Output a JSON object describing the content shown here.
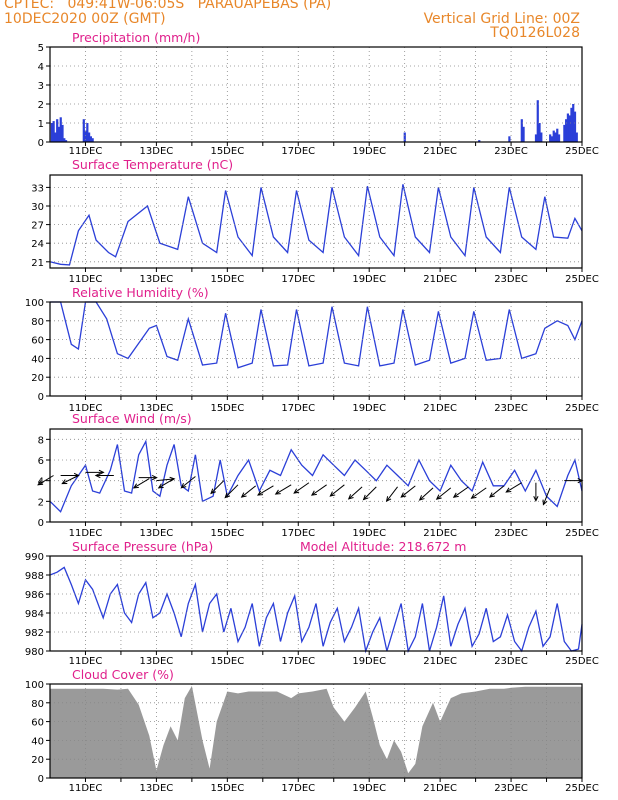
{
  "header": {
    "line1_left": "CPTEC:   049:41W-06:05S   PARAUAPEBAS (PA)",
    "line2_left": "10DEC2020 00Z (GMT)",
    "line2_right": "Vertical Grid Line: 00Z",
    "line3_right": "TQ0126L028"
  },
  "colors": {
    "header": "#e8872a",
    "title": "#e0208c",
    "line": "#2b3fd8",
    "bar": "#2b3fd8",
    "cloud": "#9a9a9a",
    "arrow": "#000000"
  },
  "x_axis": {
    "start_day": 10,
    "end_day": 25,
    "tick_labels": [
      "11DEC",
      "13DEC",
      "15DEC",
      "17DEC",
      "19DEC",
      "21DEC",
      "23DEC",
      "25DEC"
    ]
  },
  "chart_data": [
    {
      "type": "bar",
      "title": "Precipitation (mm/h)",
      "ylim": [
        0,
        5
      ],
      "yticks": [
        0,
        1,
        2,
        3,
        4,
        5
      ],
      "x": [
        10.05,
        10.1,
        10.15,
        10.2,
        10.25,
        10.3,
        10.35,
        10.4,
        10.45,
        10.95,
        11.0,
        11.05,
        11.1,
        11.15,
        11.2,
        20.0,
        22.1,
        22.95,
        23.3,
        23.35,
        23.7,
        23.75,
        23.8,
        23.85,
        24.1,
        24.15,
        24.2,
        24.25,
        24.3,
        24.35,
        24.5,
        24.55,
        24.6,
        24.65,
        24.7,
        24.75,
        24.8,
        24.85
      ],
      "values": [
        1.0,
        1.1,
        0.5,
        1.2,
        0.8,
        1.3,
        0.9,
        0.2,
        0.1,
        1.2,
        0.6,
        1.0,
        0.5,
        0.3,
        0.2,
        0.5,
        0.1,
        0.3,
        1.2,
        0.8,
        0.4,
        2.2,
        1.0,
        0.5,
        0.4,
        0.3,
        0.6,
        0.5,
        0.7,
        0.4,
        0.9,
        1.2,
        1.5,
        1.4,
        1.8,
        2.0,
        1.6,
        0.5
      ]
    },
    {
      "type": "line",
      "title": "Surface Temperature (nC)",
      "ylim": [
        20,
        35
      ],
      "yticks": [
        21,
        24,
        27,
        30,
        33
      ],
      "x": [
        10.0,
        10.3,
        10.55,
        10.8,
        11.1,
        11.3,
        11.65,
        11.85,
        12.2,
        12.75,
        13.1,
        13.6,
        13.9,
        14.3,
        14.7,
        14.95,
        15.3,
        15.7,
        15.95,
        16.3,
        16.7,
        16.95,
        17.3,
        17.7,
        17.95,
        18.3,
        18.7,
        18.95,
        19.3,
        19.7,
        19.95,
        20.3,
        20.7,
        20.95,
        21.3,
        21.7,
        21.95,
        22.3,
        22.7,
        22.95,
        23.3,
        23.7,
        23.95,
        24.2,
        24.6,
        24.8,
        25.0
      ],
      "values": [
        21,
        20.6,
        20.5,
        26,
        28.5,
        24.5,
        22.5,
        21.8,
        27.5,
        30,
        24,
        23,
        31.5,
        24,
        22.5,
        32.5,
        25,
        22,
        33,
        25,
        22.5,
        32.5,
        24.5,
        22.5,
        33,
        25,
        22,
        33.2,
        25,
        22,
        33.5,
        25,
        22.5,
        33,
        25,
        22,
        33,
        25,
        22.5,
        33,
        25,
        23,
        31.5,
        25,
        24.8,
        28,
        26
      ]
    },
    {
      "type": "line",
      "title": "Relative Humidity (%)",
      "ylim": [
        0,
        100
      ],
      "yticks": [
        0,
        20,
        40,
        60,
        80,
        100
      ],
      "x": [
        10.0,
        10.3,
        10.6,
        10.8,
        11.0,
        11.3,
        11.6,
        11.9,
        12.2,
        12.8,
        13.0,
        13.3,
        13.6,
        13.9,
        14.3,
        14.7,
        14.95,
        15.3,
        15.7,
        15.95,
        16.3,
        16.7,
        16.95,
        17.3,
        17.7,
        17.95,
        18.3,
        18.7,
        18.95,
        19.3,
        19.7,
        19.95,
        20.3,
        20.7,
        20.95,
        21.3,
        21.7,
        21.95,
        22.3,
        22.7,
        22.95,
        23.3,
        23.7,
        23.95,
        24.3,
        24.6,
        24.8,
        25.0
      ],
      "values": [
        100,
        100,
        55,
        50,
        100,
        100,
        82,
        45,
        40,
        72,
        75,
        42,
        38,
        82,
        33,
        35,
        88,
        30,
        35,
        92,
        32,
        33,
        92,
        32,
        35,
        95,
        35,
        32,
        95,
        32,
        35,
        92,
        33,
        38,
        90,
        35,
        40,
        90,
        38,
        40,
        92,
        40,
        45,
        72,
        80,
        75,
        60,
        80
      ]
    },
    {
      "type": "line",
      "title": "Surface Wind (m/s)",
      "ylim": [
        0,
        9
      ],
      "yticks": [
        0,
        2,
        4,
        6,
        8
      ],
      "x": [
        10.0,
        10.3,
        10.6,
        10.8,
        11.0,
        11.2,
        11.4,
        11.7,
        11.9,
        12.1,
        12.3,
        12.5,
        12.7,
        12.9,
        13.1,
        13.3,
        13.5,
        13.7,
        13.9,
        14.1,
        14.3,
        14.6,
        14.8,
        15.0,
        15.3,
        15.6,
        15.9,
        16.2,
        16.5,
        16.8,
        17.1,
        17.4,
        17.7,
        18.0,
        18.3,
        18.6,
        18.9,
        19.2,
        19.5,
        19.8,
        20.1,
        20.4,
        20.7,
        21.0,
        21.3,
        21.6,
        21.9,
        22.2,
        22.5,
        22.8,
        23.1,
        23.4,
        23.7,
        24.0,
        24.3,
        24.6,
        24.8,
        25.0
      ],
      "values": [
        2,
        1,
        3.5,
        4.5,
        5.5,
        3,
        2.8,
        5,
        7.5,
        3,
        2.8,
        6.5,
        7.8,
        3,
        2.5,
        5.5,
        7.5,
        3.5,
        3,
        6.5,
        2,
        2.5,
        6,
        2.5,
        4.5,
        6,
        3,
        5,
        4.5,
        7,
        5.5,
        4.5,
        6.5,
        5.5,
        4.5,
        6,
        5,
        4,
        5.5,
        4.5,
        3.5,
        6,
        4,
        3,
        5.5,
        4,
        3,
        5.8,
        3.5,
        3.5,
        5,
        3,
        5,
        2.5,
        1.5,
        4.5,
        6,
        3
      ]
    },
    {
      "type": "line",
      "title": "Surface Pressure (hPa)",
      "subtitle": "Model Altitude: 218.672 m",
      "ylim": [
        980,
        990
      ],
      "yticks": [
        980,
        982,
        984,
        986,
        988,
        990
      ],
      "x": [
        10.0,
        10.2,
        10.4,
        10.6,
        10.8,
        11.0,
        11.2,
        11.5,
        11.7,
        11.9,
        12.1,
        12.3,
        12.5,
        12.7,
        12.9,
        13.1,
        13.3,
        13.5,
        13.7,
        13.9,
        14.1,
        14.3,
        14.5,
        14.7,
        14.9,
        15.1,
        15.3,
        15.5,
        15.7,
        15.9,
        16.1,
        16.3,
        16.5,
        16.7,
        16.9,
        17.1,
        17.3,
        17.5,
        17.7,
        17.9,
        18.1,
        18.3,
        18.5,
        18.7,
        18.9,
        19.1,
        19.3,
        19.5,
        19.7,
        19.9,
        20.1,
        20.3,
        20.5,
        20.7,
        20.9,
        21.1,
        21.3,
        21.5,
        21.7,
        21.9,
        22.1,
        22.3,
        22.5,
        22.7,
        22.9,
        23.1,
        23.3,
        23.5,
        23.7,
        23.9,
        24.1,
        24.3,
        24.5,
        24.7,
        24.9,
        25.0
      ],
      "values": [
        988,
        988.3,
        988.8,
        987,
        985,
        987.5,
        986.5,
        983.5,
        986,
        987,
        984,
        983,
        986,
        987.2,
        983.5,
        984,
        986,
        984,
        981.5,
        985,
        987,
        982,
        985,
        986,
        982,
        984.5,
        981,
        982.5,
        985,
        980.5,
        983.5,
        985,
        981,
        984,
        985.8,
        981,
        982.5,
        985,
        980.5,
        983,
        984.5,
        981,
        982.5,
        984.5,
        980,
        982,
        983.5,
        980,
        982.5,
        985,
        980,
        981.5,
        985,
        980,
        982.5,
        985.8,
        980.5,
        982.8,
        984.5,
        980.5,
        981.8,
        984.5,
        981,
        981.5,
        983.8,
        981,
        980,
        982.5,
        984.2,
        980.5,
        981.5,
        985,
        981,
        979.8,
        980.2,
        982.8
      ]
    },
    {
      "type": "area",
      "title": "Cloud Cover (%)",
      "ylim": [
        0,
        100
      ],
      "yticks": [
        0,
        20,
        40,
        60,
        80,
        100
      ],
      "x": [
        10.0,
        10.5,
        11.0,
        11.5,
        11.9,
        12.2,
        12.5,
        12.8,
        13.0,
        13.2,
        13.4,
        13.6,
        13.8,
        14.0,
        14.3,
        14.5,
        14.7,
        15.0,
        15.3,
        15.6,
        16.0,
        16.4,
        16.8,
        17.0,
        17.4,
        17.8,
        18.0,
        18.3,
        18.6,
        18.9,
        19.1,
        19.3,
        19.5,
        19.7,
        19.9,
        20.1,
        20.3,
        20.5,
        20.8,
        21.0,
        21.3,
        21.6,
        22.0,
        22.4,
        22.8,
        23.0,
        23.4,
        23.8,
        24.2,
        24.6,
        25.0
      ],
      "values": [
        95,
        95,
        95,
        95,
        94,
        95,
        78,
        45,
        8,
        35,
        55,
        40,
        85,
        98,
        40,
        10,
        60,
        92,
        90,
        92,
        92,
        92,
        85,
        90,
        92,
        95,
        75,
        60,
        75,
        92,
        65,
        35,
        20,
        40,
        28,
        5,
        15,
        55,
        80,
        60,
        85,
        90,
        92,
        95,
        95,
        96,
        97,
        97,
        97,
        97,
        97
      ]
    }
  ]
}
